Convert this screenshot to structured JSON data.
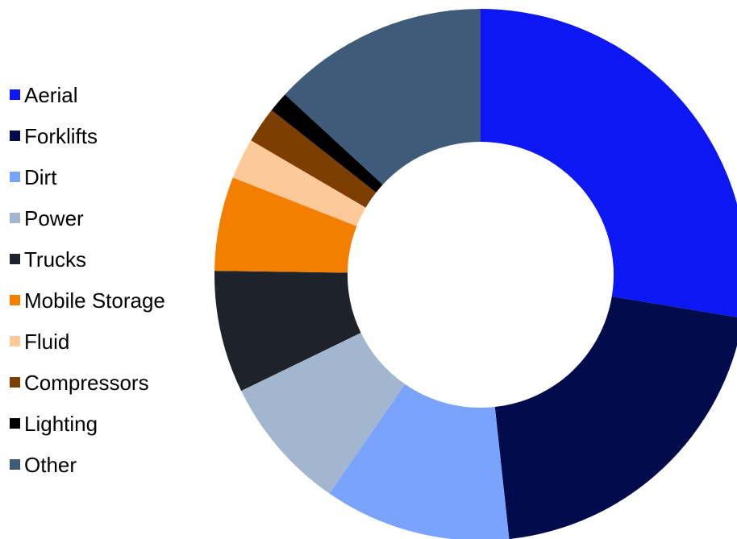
{
  "chart_data": {
    "type": "pie",
    "donut": true,
    "legend_position": "left",
    "title": "",
    "categories": [
      "Aerial",
      "Forklifts",
      "Dirt",
      "Power",
      "Trucks",
      "Mobile Storage",
      "Fluid",
      "Compressors",
      "Lighting",
      "Other"
    ],
    "values": [
      29.0,
      21.7,
      11.9,
      8.6,
      7.8,
      6.0,
      2.6,
      2.3,
      1.3,
      13.8
    ],
    "unit": "%",
    "colors": [
      "#0d17f4",
      "#020c4c",
      "#7aa3fd",
      "#a3b6cf",
      "#1e232b",
      "#f47e00",
      "#fdc998",
      "#7c3e01",
      "#000000",
      "#3f5b7a"
    ]
  }
}
